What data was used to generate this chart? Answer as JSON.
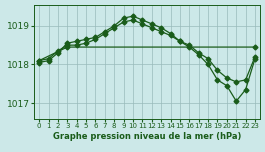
{
  "title": "Graphe pression niveau de la mer (hPa)",
  "bg_color": "#cce8e8",
  "line_color": "#1a5c1a",
  "grid_color": "#99bbbb",
  "xlim": [
    -0.5,
    23.5
  ],
  "ylim": [
    1016.6,
    1019.55
  ],
  "yticks": [
    1017,
    1018,
    1019
  ],
  "xticks": [
    0,
    1,
    2,
    3,
    4,
    5,
    6,
    7,
    8,
    9,
    10,
    11,
    12,
    13,
    14,
    15,
    16,
    17,
    18,
    19,
    20,
    21,
    22,
    23
  ],
  "line1_x": [
    0,
    1,
    2,
    3,
    4,
    5,
    6,
    7,
    8,
    9,
    10,
    11,
    12,
    13,
    14,
    15,
    16,
    17,
    18,
    19,
    20,
    21,
    22,
    23
  ],
  "line1_y": [
    1018.1,
    1018.15,
    1018.35,
    1018.5,
    1018.5,
    1018.55,
    1018.65,
    1018.8,
    1018.95,
    1019.1,
    1019.15,
    1019.05,
    1018.95,
    1018.85,
    1018.75,
    1018.6,
    1018.5,
    1018.3,
    1018.15,
    1017.85,
    1017.65,
    1017.55,
    1017.6,
    1018.2
  ],
  "line2_x": [
    0,
    1,
    2,
    3,
    4,
    5,
    6,
    7,
    8,
    9,
    10,
    11,
    12,
    13,
    14,
    15,
    16,
    17,
    18,
    19,
    20,
    21,
    22,
    23
  ],
  "line2_y": [
    1018.05,
    1018.1,
    1018.3,
    1018.55,
    1018.6,
    1018.65,
    1018.7,
    1018.85,
    1019.0,
    1019.2,
    1019.25,
    1019.15,
    1019.05,
    1018.95,
    1018.8,
    1018.6,
    1018.45,
    1018.25,
    1018.0,
    1017.6,
    1017.45,
    1017.05,
    1017.35,
    1018.15
  ],
  "line3_x": [
    0,
    3,
    23
  ],
  "line3_y": [
    1018.1,
    1018.45,
    1018.45
  ],
  "lw": 0.9,
  "ms": 2.5
}
